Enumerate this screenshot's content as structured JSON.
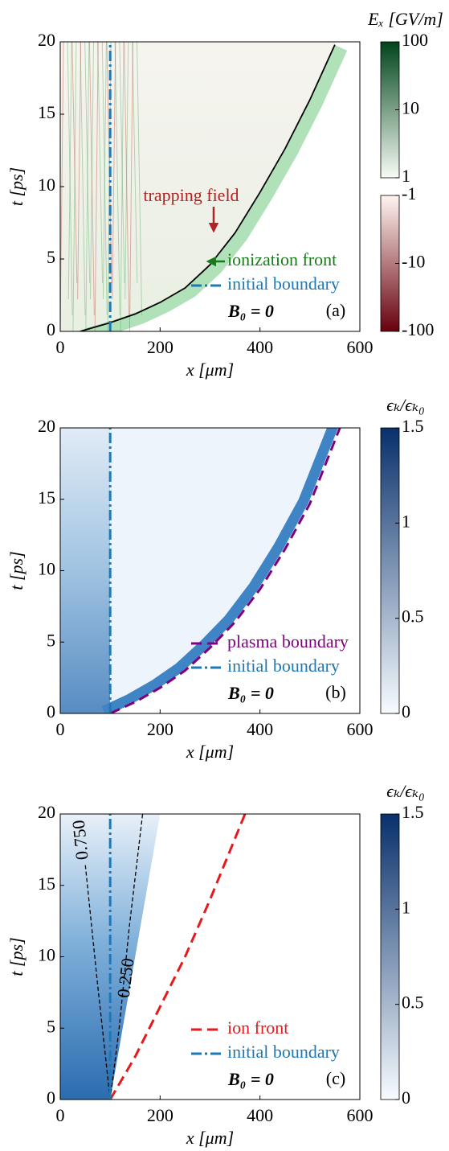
{
  "chart_data": [
    {
      "type": "heatmap",
      "panel_label": "(a)",
      "annotation": "B₀ = 0",
      "arrow_annotation": "trapping field",
      "arrow_color": "#b22222",
      "xlabel": "x [μm]",
      "ylabel": "t [ps]",
      "xlim": [
        0,
        600
      ],
      "ylim": [
        0,
        20
      ],
      "xticks": [
        0,
        200,
        400,
        600
      ],
      "yticks": [
        0,
        5,
        10,
        15,
        20
      ],
      "series": [
        {
          "name": "ionization front",
          "color": "#000000",
          "label_color": "#1a7a1a",
          "style": "solid",
          "x": [
            40,
            100,
            150,
            200,
            250,
            300,
            350,
            400,
            450,
            500,
            550
          ],
          "y": [
            0,
            0.6,
            1.2,
            2.0,
            3.0,
            4.6,
            6.8,
            9.6,
            12.6,
            16.0,
            19.8
          ]
        },
        {
          "name": "initial boundary",
          "color": "#1f77b4",
          "style": "dashdot",
          "x": [
            100,
            100
          ],
          "y": [
            0,
            20
          ]
        }
      ],
      "colorbars": [
        {
          "label": "Eₓ [GV/m]",
          "lim": [
            1,
            100
          ],
          "ticks": [
            1,
            10,
            100
          ],
          "log": true,
          "colors": [
            "#f7fcf5",
            "#00441b"
          ]
        },
        {
          "lim": [
            -100,
            -1
          ],
          "ticks": [
            -1,
            -10,
            -100
          ],
          "log": true,
          "colors": [
            "#67000d",
            "#fff5f0"
          ]
        }
      ]
    },
    {
      "type": "heatmap",
      "panel_label": "(b)",
      "annotation": "B₀ = 0",
      "xlabel": "x [μm]",
      "ylabel": "t [ps]",
      "xlim": [
        0,
        600
      ],
      "ylim": [
        0,
        20
      ],
      "xticks": [
        0,
        200,
        400,
        600
      ],
      "yticks": [
        0,
        5,
        10,
        15,
        20
      ],
      "series": [
        {
          "name": "plasma boundary",
          "color": "#800080",
          "style": "dashed",
          "x": [
            100,
            150,
            200,
            250,
            300,
            350,
            400,
            450,
            500,
            560
          ],
          "y": [
            0,
            0.8,
            1.8,
            3.0,
            4.6,
            6.4,
            8.7,
            11.5,
            14.7,
            20
          ]
        },
        {
          "name": "initial boundary",
          "color": "#1f77b4",
          "style": "dashdot",
          "x": [
            100,
            100
          ],
          "y": [
            0,
            20
          ]
        }
      ],
      "colorbars": [
        {
          "label": "ϵₖ/ϵₖ₀",
          "lim": [
            0,
            1.5
          ],
          "ticks": [
            0,
            0.5,
            1,
            1.5
          ],
          "log": false,
          "colors": [
            "#f7fbff",
            "#08306b"
          ]
        }
      ]
    },
    {
      "type": "heatmap",
      "panel_label": "(c)",
      "annotation": "B₀ = 0",
      "xlabel": "x [μm]",
      "ylabel": "t [ps]",
      "xlim": [
        0,
        600
      ],
      "ylim": [
        0,
        20
      ],
      "xticks": [
        0,
        200,
        400,
        600
      ],
      "yticks": [
        0,
        5,
        10,
        15,
        20
      ],
      "series": [
        {
          "name": "ion front",
          "color": "#e41a1c",
          "style": "dashed",
          "x": [
            100,
            150,
            200,
            250,
            300,
            370
          ],
          "y": [
            0,
            3,
            6.5,
            10,
            14,
            20
          ]
        },
        {
          "name": "initial boundary",
          "color": "#1f77b4",
          "style": "dashdot",
          "x": [
            100,
            100
          ],
          "y": [
            0,
            20
          ]
        }
      ],
      "contours": [
        {
          "level": 0.75,
          "label": "0.750",
          "x": [
            100,
            75,
            50
          ],
          "y": [
            0,
            8,
            16.5
          ]
        },
        {
          "level": 0.25,
          "label": "0.250",
          "x": [
            100,
            118,
            138,
            165
          ],
          "y": [
            0,
            5,
            12,
            20
          ]
        }
      ],
      "colorbars": [
        {
          "label": "ϵₖ/ϵₖ₀",
          "lim": [
            0,
            1.5
          ],
          "ticks": [
            0,
            0.5,
            1,
            1.5
          ],
          "log": false,
          "colors": [
            "#f7fbff",
            "#08306b"
          ]
        }
      ]
    }
  ]
}
